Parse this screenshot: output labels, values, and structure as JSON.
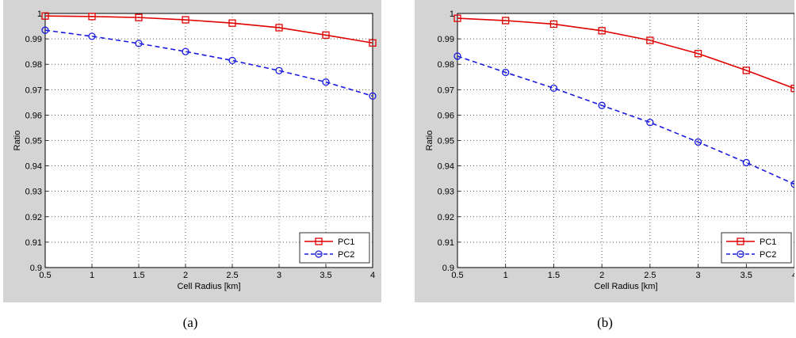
{
  "chart_data": [
    {
      "type": "line",
      "panel": "(a)",
      "xlabel": "Cell Radius [km]",
      "ylabel": "Ratio",
      "xlim": [
        0.5,
        4
      ],
      "ylim": [
        0.9,
        1
      ],
      "xticks": [
        "0.5",
        "1",
        "1.5",
        "2",
        "2.5",
        "3",
        "3.5",
        "4"
      ],
      "yticks": [
        "0.9",
        "0.91",
        "0.92",
        "0.93",
        "0.94",
        "0.95",
        "0.96",
        "0.97",
        "0.98",
        "0.99",
        "1"
      ],
      "grid": true,
      "legend_position": "bottom-right",
      "x": [
        0.5,
        1,
        1.5,
        2,
        2.5,
        3,
        3.5,
        4
      ],
      "series": [
        {
          "name": "PC1",
          "color": "#e00000",
          "marker": "square",
          "style": "solid",
          "values": [
            0.999,
            0.9988,
            0.9984,
            0.9975,
            0.9962,
            0.9944,
            0.9915,
            0.9884
          ]
        },
        {
          "name": "PC2",
          "color": "#1a1ae0",
          "marker": "circle",
          "style": "dashed",
          "values": [
            0.9934,
            0.991,
            0.9882,
            0.985,
            0.9815,
            0.9775,
            0.973,
            0.9675
          ]
        }
      ]
    },
    {
      "type": "line",
      "panel": "(b)",
      "xlabel": "Cell Radius [km]",
      "ylabel": "Ratio",
      "xlim": [
        0.5,
        4
      ],
      "ylim": [
        0.9,
        1
      ],
      "xticks": [
        "0.5",
        "1",
        "1.5",
        "2",
        "2.5",
        "3",
        "3.5",
        "4"
      ],
      "yticks": [
        "0.9",
        "0.91",
        "0.92",
        "0.93",
        "0.94",
        "0.95",
        "0.96",
        "0.97",
        "0.98",
        "0.99",
        "1"
      ],
      "grid": true,
      "legend_position": "bottom-right",
      "x": [
        0.5,
        1,
        1.5,
        2,
        2.5,
        3,
        3.5,
        4
      ],
      "series": [
        {
          "name": "PC1",
          "color": "#e00000",
          "marker": "square",
          "style": "solid",
          "values": [
            0.9981,
            0.9972,
            0.9958,
            0.9932,
            0.9894,
            0.9842,
            0.9776,
            0.9705
          ]
        },
        {
          "name": "PC2",
          "color": "#1a1ae0",
          "marker": "circle",
          "style": "dashed",
          "values": [
            0.9832,
            0.9768,
            0.9706,
            0.9638,
            0.9571,
            0.9494,
            0.9413,
            0.9328
          ]
        }
      ]
    }
  ]
}
